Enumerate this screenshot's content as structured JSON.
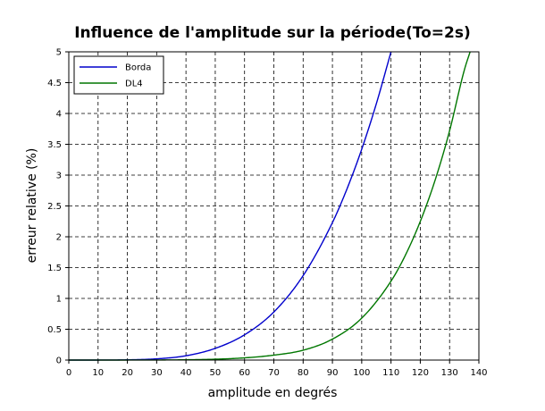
{
  "chart_data": {
    "type": "line",
    "title": "Influence de l'amplitude sur la période(To=2s)",
    "xlabel": "amplitude en degrés",
    "ylabel": "erreur relative (%)",
    "xlim": [
      0,
      140
    ],
    "ylim": [
      0,
      5
    ],
    "xticks": [
      0,
      10,
      20,
      30,
      40,
      50,
      60,
      70,
      80,
      90,
      100,
      110,
      120,
      130,
      140
    ],
    "yticks": [
      0,
      0.5,
      1,
      1.5,
      2,
      2.5,
      3,
      3.5,
      4,
      4.5,
      5
    ],
    "ytick_labels": [
      "0",
      "0.5",
      "1",
      "1.5",
      "2",
      "2.5",
      "3",
      "3.5",
      "4",
      "4.5",
      "5"
    ],
    "grid": true,
    "grid_style": "dashed",
    "legend_position": "top-left",
    "series": [
      {
        "name": "Borda",
        "color": "#0000cc",
        "x": [
          0,
          10,
          20,
          30,
          40,
          50,
          60,
          70,
          80,
          90,
          95,
          100,
          105,
          110
        ],
        "y": [
          0,
          0.0002,
          0.004,
          0.02,
          0.07,
          0.19,
          0.41,
          0.78,
          1.37,
          2.23,
          2.78,
          3.42,
          4.16,
          5.0
        ]
      },
      {
        "name": "DL4",
        "color": "#007700",
        "x": [
          0,
          10,
          20,
          30,
          40,
          50,
          60,
          70,
          80,
          90,
          100,
          110,
          115,
          120,
          125,
          130,
          135,
          137
        ],
        "y": [
          0,
          1e-05,
          0.0002,
          0.0012,
          0.005,
          0.014,
          0.036,
          0.08,
          0.16,
          0.34,
          0.68,
          1.28,
          1.71,
          2.25,
          2.91,
          3.72,
          4.7,
          5.0
        ]
      }
    ]
  }
}
